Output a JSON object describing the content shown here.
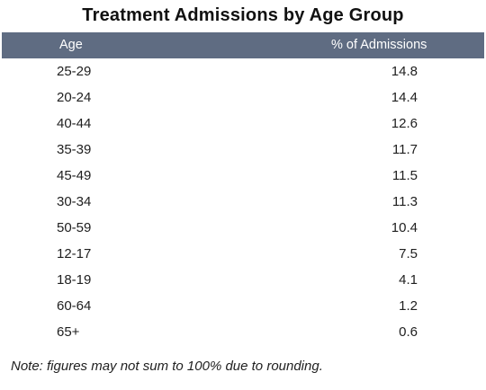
{
  "title": "Treatment Admissions by Age Group",
  "chart_data": {
    "type": "table",
    "title": "Treatment Admissions by Age Group",
    "columns": [
      "Age",
      "% of Admissions"
    ],
    "rows": [
      {
        "age": "25-29",
        "pct": "14.8"
      },
      {
        "age": "20-24",
        "pct": "14.4"
      },
      {
        "age": "40-44",
        "pct": "12.6"
      },
      {
        "age": "35-39",
        "pct": "11.7"
      },
      {
        "age": "45-49",
        "pct": "11.5"
      },
      {
        "age": "30-34",
        "pct": "11.3"
      },
      {
        "age": "50-59",
        "pct": "10.4"
      },
      {
        "age": "12-17",
        "pct": "7.5"
      },
      {
        "age": "18-19",
        "pct": "4.1"
      },
      {
        "age": "60-64",
        "pct": "1.2"
      },
      {
        "age": "65+",
        "pct": "0.6"
      }
    ]
  },
  "note": "Note: figures may not sum to 100% due to rounding.",
  "colors": {
    "header_bg": "#5f6c82",
    "header_text": "#ffffff"
  }
}
